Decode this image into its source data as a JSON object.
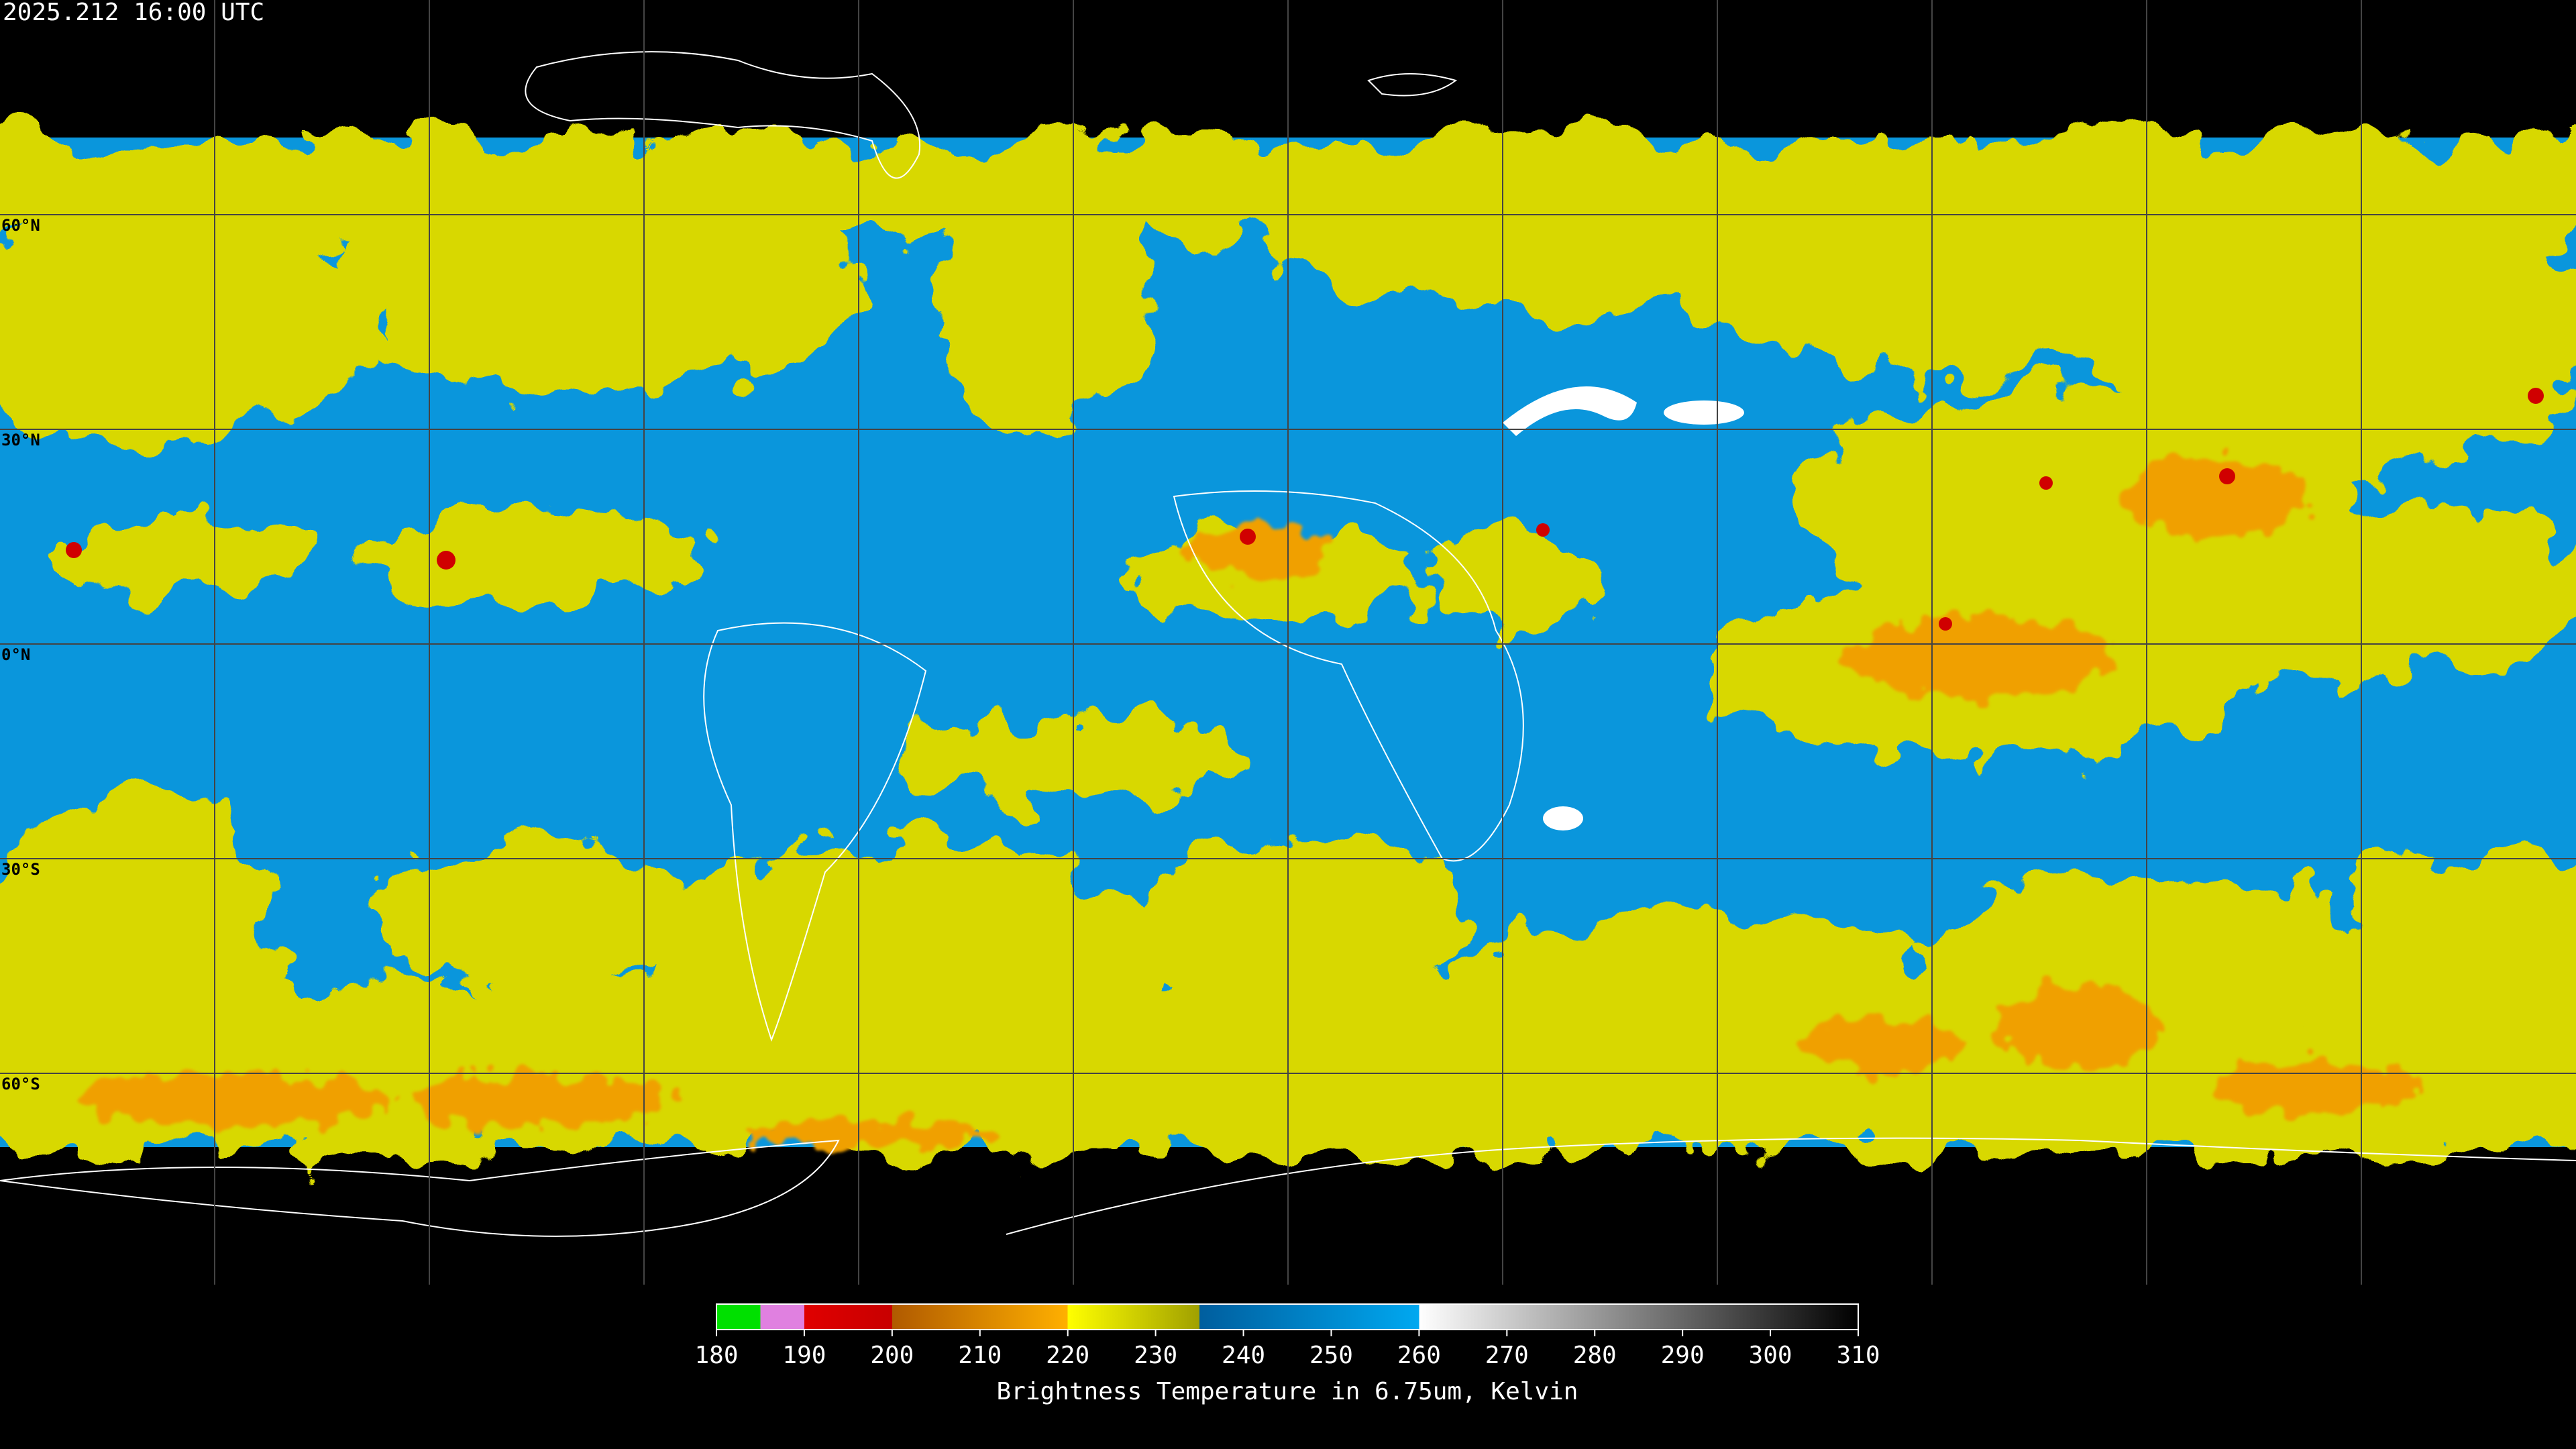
{
  "header": {
    "timestamp": "2025.212 16:00 UTC"
  },
  "map": {
    "latitude_labels": [
      "60°N",
      "30°N",
      "0°N",
      "30°S",
      "60°S"
    ]
  },
  "colorbar": {
    "range": [
      180,
      310
    ],
    "ticks": [
      180,
      190,
      200,
      210,
      220,
      230,
      240,
      250,
      260,
      270,
      280,
      290,
      300,
      310
    ],
    "stops": [
      {
        "value": 180,
        "color": "#00e000"
      },
      {
        "value": 185,
        "color": "#00e000"
      },
      {
        "value": 185,
        "color": "#e080e0"
      },
      {
        "value": 190,
        "color": "#e080e0"
      },
      {
        "value": 190,
        "color": "#e00000"
      },
      {
        "value": 200,
        "color": "#c80000"
      },
      {
        "value": 200,
        "color": "#b05a00"
      },
      {
        "value": 220,
        "color": "#ffb000"
      },
      {
        "value": 220,
        "color": "#ffff00"
      },
      {
        "value": 235,
        "color": "#a0a000"
      },
      {
        "value": 235,
        "color": "#005e9e"
      },
      {
        "value": 260,
        "color": "#00a8f0"
      },
      {
        "value": 260,
        "color": "#ffffff"
      },
      {
        "value": 310,
        "color": "#000000"
      }
    ],
    "label": "Brightness Temperature in 6.75um, Kelvin"
  }
}
